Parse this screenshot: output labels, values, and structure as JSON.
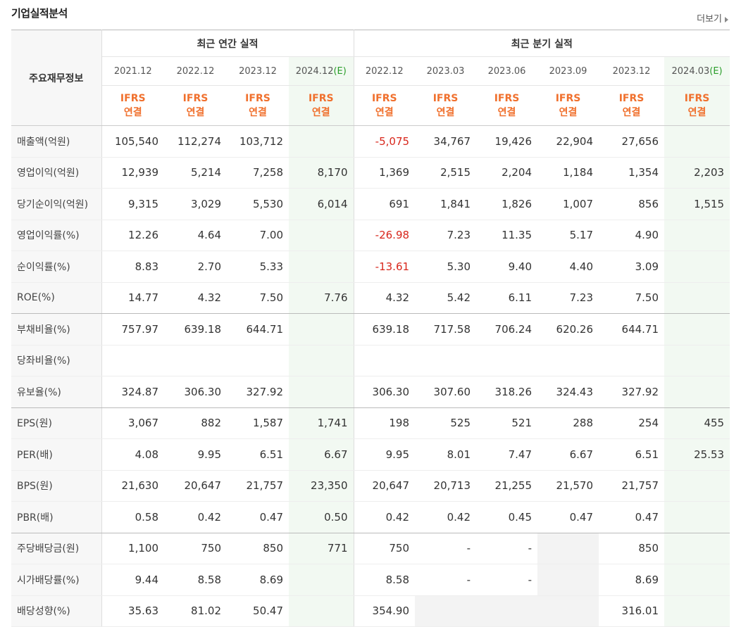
{
  "header": {
    "title": "기업실적분석",
    "more_label": "더보기"
  },
  "table": {
    "corner": "주요재무정보",
    "groups": {
      "annual": "최근 연간 실적",
      "quarterly": "최근 분기 실적"
    },
    "periods": [
      {
        "label": "2021.12",
        "est": ""
      },
      {
        "label": "2022.12",
        "est": ""
      },
      {
        "label": "2023.12",
        "est": ""
      },
      {
        "label": "2024.12",
        "est": "(E)"
      },
      {
        "label": "2022.12",
        "est": ""
      },
      {
        "label": "2023.03",
        "est": ""
      },
      {
        "label": "2023.06",
        "est": ""
      },
      {
        "label": "2023.09",
        "est": ""
      },
      {
        "label": "2023.12",
        "est": ""
      },
      {
        "label": "2024.03",
        "est": "(E)"
      }
    ],
    "ifrs_top": "IFRS",
    "ifrs_bottom": "연결",
    "rows": [
      {
        "label": "매출액(억원)",
        "values": [
          "105,540",
          "112,274",
          "103,712",
          "",
          "-5,075",
          "34,767",
          "19,426",
          "22,904",
          "27,656",
          ""
        ]
      },
      {
        "label": "영업이익(억원)",
        "values": [
          "12,939",
          "5,214",
          "7,258",
          "8,170",
          "1,369",
          "2,515",
          "2,204",
          "1,184",
          "1,354",
          "2,203"
        ]
      },
      {
        "label": "당기순이익(억원)",
        "values": [
          "9,315",
          "3,029",
          "5,530",
          "6,014",
          "691",
          "1,841",
          "1,826",
          "1,007",
          "856",
          "1,515"
        ]
      },
      {
        "label": "영업이익률(%)",
        "values": [
          "12.26",
          "4.64",
          "7.00",
          "",
          "-26.98",
          "7.23",
          "11.35",
          "5.17",
          "4.90",
          ""
        ]
      },
      {
        "label": "순이익률(%)",
        "values": [
          "8.83",
          "2.70",
          "5.33",
          "",
          "-13.61",
          "5.30",
          "9.40",
          "4.40",
          "3.09",
          ""
        ]
      },
      {
        "label": "ROE(%)",
        "values": [
          "14.77",
          "4.32",
          "7.50",
          "7.76",
          "4.32",
          "5.42",
          "6.11",
          "7.23",
          "7.50",
          ""
        ]
      },
      {
        "label": "부채비율(%)",
        "values": [
          "757.97",
          "639.18",
          "644.71",
          "",
          "639.18",
          "717.58",
          "706.24",
          "620.26",
          "644.71",
          ""
        ]
      },
      {
        "label": "당좌비율(%)",
        "values": [
          "",
          "",
          "",
          "",
          "",
          "",
          "",
          "",
          "",
          ""
        ]
      },
      {
        "label": "유보율(%)",
        "values": [
          "324.87",
          "306.30",
          "327.92",
          "",
          "306.30",
          "307.60",
          "318.26",
          "324.43",
          "327.92",
          ""
        ]
      },
      {
        "label": "EPS(원)",
        "values": [
          "3,067",
          "882",
          "1,587",
          "1,741",
          "198",
          "525",
          "521",
          "288",
          "254",
          "455"
        ]
      },
      {
        "label": "PER(배)",
        "values": [
          "4.08",
          "9.95",
          "6.51",
          "6.67",
          "9.95",
          "8.01",
          "7.47",
          "6.67",
          "6.51",
          "25.53"
        ]
      },
      {
        "label": "BPS(원)",
        "values": [
          "21,630",
          "20,647",
          "21,757",
          "23,350",
          "20,647",
          "20,713",
          "21,255",
          "21,570",
          "21,757",
          ""
        ]
      },
      {
        "label": "PBR(배)",
        "values": [
          "0.58",
          "0.42",
          "0.47",
          "0.50",
          "0.42",
          "0.42",
          "0.45",
          "0.47",
          "0.47",
          ""
        ]
      },
      {
        "label": "주당배당금(원)",
        "values": [
          "1,100",
          "750",
          "850",
          "771",
          "750",
          "-",
          "-",
          "",
          "850",
          ""
        ]
      },
      {
        "label": "시가배당률(%)",
        "values": [
          "9.44",
          "8.58",
          "8.69",
          "",
          "8.58",
          "-",
          "-",
          "",
          "8.69",
          ""
        ]
      },
      {
        "label": "배당성향(%)",
        "values": [
          "35.63",
          "81.02",
          "50.47",
          "",
          "354.90",
          "",
          "",
          "",
          "316.01",
          ""
        ]
      }
    ]
  },
  "colors": {
    "negative": "#d8261b",
    "ifrs": "#f0702d",
    "estimate_bg": "#f2f9f2",
    "estimate_mark": "#2a9d2a"
  }
}
